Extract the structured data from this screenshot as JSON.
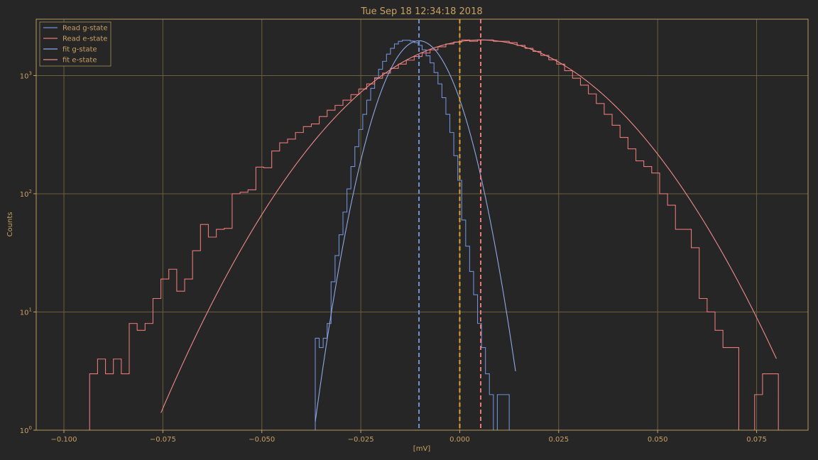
{
  "chart_data": {
    "type": "line",
    "title": "Tue Sep 18 12:34:18 2018",
    "xlabel": "[mV]",
    "ylabel": "Counts",
    "xlim": [
      -0.107,
      0.088
    ],
    "ylim": [
      1,
      3000
    ],
    "yscale": "log",
    "grid": true,
    "legend_position": "top-left",
    "x_ticks": [
      {
        "value": -0.1,
        "label": "−0.100"
      },
      {
        "value": -0.075,
        "label": "−0.075"
      },
      {
        "value": -0.05,
        "label": "−0.050"
      },
      {
        "value": -0.025,
        "label": "−0.025"
      },
      {
        "value": 0.0,
        "label": "0.000"
      },
      {
        "value": 0.025,
        "label": "0.025"
      },
      {
        "value": 0.05,
        "label": "0.050"
      },
      {
        "value": 0.075,
        "label": "0.075"
      }
    ],
    "y_ticks": [
      {
        "value": 1,
        "base": "10",
        "exp": "0"
      },
      {
        "value": 10,
        "base": "10",
        "exp": "1"
      },
      {
        "value": 100,
        "base": "10",
        "exp": "2"
      },
      {
        "value": 1000,
        "base": "10",
        "exp": "3"
      }
    ],
    "vlines": [
      {
        "x": -0.0103,
        "color": "#6f8fd6"
      },
      {
        "x": 0.0,
        "color": "#e0a030"
      },
      {
        "x": 0.0053,
        "color": "#e87878"
      }
    ],
    "series": [
      {
        "name": "Read g-state",
        "kind": "step",
        "color": "#6f8fd6",
        "x": [
          -0.036,
          -0.035,
          -0.034,
          -0.033,
          -0.032,
          -0.031,
          -0.03,
          -0.029,
          -0.028,
          -0.027,
          -0.026,
          -0.025,
          -0.024,
          -0.023,
          -0.022,
          -0.021,
          -0.02,
          -0.019,
          -0.018,
          -0.017,
          -0.016,
          -0.015,
          -0.014,
          -0.013,
          -0.012,
          -0.011,
          -0.01,
          -0.009,
          -0.008,
          -0.007,
          -0.006,
          -0.005,
          -0.004,
          -0.003,
          -0.002,
          -0.001,
          0.0,
          0.001,
          0.002,
          0.003,
          0.004,
          0.005,
          0.006,
          0.007,
          0.008,
          0.009,
          0.01,
          0.011,
          0.012,
          0.013,
          0.014
        ],
        "y": [
          6,
          5,
          6,
          8,
          18,
          30,
          45,
          70,
          110,
          170,
          250,
          350,
          470,
          620,
          780,
          960,
          1130,
          1320,
          1520,
          1700,
          1850,
          1950,
          1990,
          1990,
          1960,
          1900,
          1800,
          1650,
          1470,
          1280,
          1060,
          850,
          650,
          470,
          330,
          210,
          130,
          60,
          36,
          22,
          14,
          8,
          5,
          3,
          2,
          1,
          2,
          2,
          2,
          1,
          1
        ]
      },
      {
        "name": "Read e-state",
        "kind": "step",
        "color": "#e87878",
        "x": [
          -0.0925,
          -0.0905,
          -0.0885,
          -0.0865,
          -0.0845,
          -0.0825,
          -0.0805,
          -0.0785,
          -0.0765,
          -0.0745,
          -0.0725,
          -0.0705,
          -0.0685,
          -0.0665,
          -0.0645,
          -0.0625,
          -0.0605,
          -0.0585,
          -0.0565,
          -0.0545,
          -0.0525,
          -0.0505,
          -0.0485,
          -0.0465,
          -0.0445,
          -0.0425,
          -0.0405,
          -0.0385,
          -0.0365,
          -0.0345,
          -0.0325,
          -0.0305,
          -0.0285,
          -0.0265,
          -0.0245,
          -0.0225,
          -0.0205,
          -0.0185,
          -0.0165,
          -0.0145,
          -0.0125,
          -0.0105,
          -0.0085,
          -0.0065,
          -0.0045,
          -0.0025,
          -0.0005,
          0.0015,
          0.0035,
          0.0055,
          0.0075,
          0.0095,
          0.0115,
          0.0135,
          0.0155,
          0.0175,
          0.0195,
          0.0215,
          0.0235,
          0.0255,
          0.0275,
          0.0295,
          0.0315,
          0.0335,
          0.0355,
          0.0375,
          0.0395,
          0.0415,
          0.0435,
          0.0455,
          0.0475,
          0.0495,
          0.0515,
          0.0535,
          0.0555,
          0.0575,
          0.0595,
          0.0615,
          0.0635,
          0.0655,
          0.0675,
          0.0695,
          0.0715,
          0.0735,
          0.0755,
          0.0775,
          0.0795
        ],
        "y": [
          3,
          4,
          3,
          4,
          3,
          8,
          7,
          8,
          13,
          19,
          23,
          15,
          19,
          33,
          55,
          43,
          50,
          51,
          100,
          103,
          108,
          168,
          166,
          230,
          270,
          290,
          330,
          370,
          390,
          450,
          510,
          560,
          620,
          690,
          770,
          850,
          950,
          1050,
          1150,
          1250,
          1350,
          1450,
          1550,
          1650,
          1750,
          1850,
          1920,
          2000,
          1950,
          2000,
          2000,
          1950,
          1950,
          1900,
          1800,
          1700,
          1600,
          1480,
          1360,
          1250,
          1100,
          950,
          830,
          700,
          580,
          470,
          380,
          300,
          240,
          190,
          170,
          150,
          100,
          80,
          50,
          50,
          35,
          13,
          10,
          7,
          5,
          5,
          1,
          1,
          2,
          3,
          3
        ]
      },
      {
        "name": "fit g-state",
        "kind": "gauss",
        "color": "#8fa8e6",
        "amp": 1970,
        "mu": -0.0103,
        "sigma": 0.0068,
        "xmin": -0.0365,
        "xmax": 0.0141
      },
      {
        "name": "fit e-state",
        "kind": "gauss",
        "color": "#f08a8a",
        "amp": 2000,
        "mu": 0.0053,
        "sigma": 0.0212,
        "xmin": -0.0755,
        "xmax": 0.08
      }
    ]
  }
}
